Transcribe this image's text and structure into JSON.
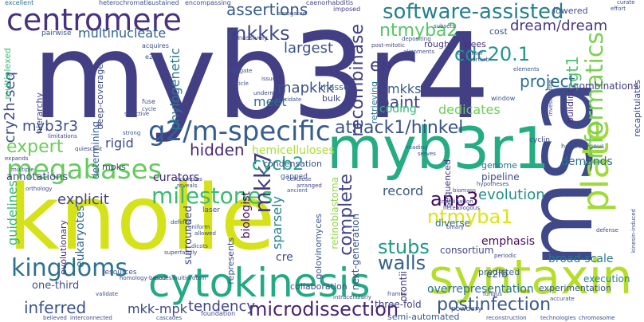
{
  "words": [
    "myb3r4",
    "knolle",
    "msa",
    "myb3r1",
    "syntaxin",
    "cytokinesis",
    "centromere",
    "plate",
    "megabases",
    "g2/m-specific",
    "software-assisted",
    "milestones",
    "kingdoms",
    "informatics",
    "mkk7",
    "microdissection",
    "ntmyba1",
    "complete",
    "stubs",
    "anp3",
    "atnack1/hinkel",
    "cycb2",
    "cdc20.1",
    "mkkks",
    "multinucleate",
    "expert",
    "myb3r3",
    "hidden",
    "walls",
    "inferred",
    "recombinase",
    "ntmyba2",
    "mapkkk",
    "dream/dream",
    "sgt1",
    "postinfection",
    "assertions",
    "guidelines",
    "sparsely",
    "tendency",
    "evolution",
    "cry2h-seq",
    "largest",
    "paint",
    "explicit",
    "project",
    "record",
    "emphasis",
    "curators",
    "phylogenetic",
    "mkks",
    "mkk-mpk",
    "en",
    "annotations",
    "coding",
    "biologist",
    "meet",
    "dedicates",
    "rigid",
    "demands",
    "combinations",
    "overrepresentation",
    "experimentation",
    "execution",
    "broad-scale",
    "three-fold",
    "consortium",
    "retinoblastoma",
    "orontii",
    "condensation",
    "hemicelluloses",
    "collaboration",
    "eukaryotes",
    "surrounded",
    "evolutionary",
    "next-generation",
    "represents",
    "golovinomyces",
    "one-third",
    "semi-automated",
    "predicted",
    "diverse",
    "pipeline",
    "genome",
    "cre",
    "e2fb",
    "sequenced",
    "multiplexed",
    "hierarchy",
    "determining",
    "deep-coverage",
    "mpks",
    "cost",
    "trees",
    "bulk",
    "masse",
    "roughly",
    "lowered",
    "building",
    "recapitulates",
    "retrieving",
    "window",
    "cyclin",
    "fuse",
    "massively",
    "pairwise",
    "heterochromatic",
    "abrogated",
    "imposed",
    "encompassing",
    "caenorhabditis",
    "sustained",
    "excellent",
    "acquires",
    "e2fc",
    "expands",
    "multiple",
    "orthology",
    "limitations",
    "quiescent",
    "strong",
    "selective",
    "cycle",
    "examples",
    "resources",
    "homology-based",
    "multiprotein",
    "foundation",
    "cascades",
    "believed",
    "interconnected",
    "reconstruction",
    "technologies",
    "chromosome",
    "powdery",
    "underment",
    "intracellularly",
    "curate",
    "heterozygous",
    "gapped",
    "laser",
    "dicots",
    "allowed",
    "accurate",
    "defense",
    "frames",
    "fungus",
    "effort",
    "subsets",
    "daughter",
    "perturb",
    "biomass",
    "hypotheses",
    "arranged",
    "cellulose",
    "ancient",
    "coordination",
    "heterologous",
    "binary",
    "periodic",
    "kinesin-induced",
    "obligate",
    "article",
    "issue",
    "elucidate",
    "reading",
    "serves",
    "post-mitotic",
    "depositing",
    "alignments",
    "investigating",
    "elements",
    "validate",
    "superfamily",
    "uniform",
    "defined",
    "reveals",
    "modes"
  ]
}
